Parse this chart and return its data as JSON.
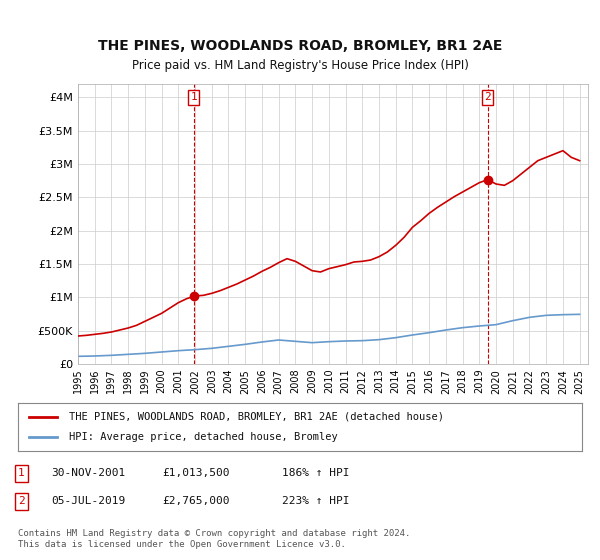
{
  "title": "THE PINES, WOODLANDS ROAD, BROMLEY, BR1 2AE",
  "subtitle": "Price paid vs. HM Land Registry's House Price Index (HPI)",
  "legend_line1": "THE PINES, WOODLANDS ROAD, BROMLEY, BR1 2AE (detached house)",
  "legend_line2": "HPI: Average price, detached house, Bromley",
  "annotation1_label": "1",
  "annotation1_date": "30-NOV-2001",
  "annotation1_price": "£1,013,500",
  "annotation1_hpi": "186% ↑ HPI",
  "annotation2_label": "2",
  "annotation2_date": "05-JUL-2019",
  "annotation2_price": "£2,765,000",
  "annotation2_hpi": "223% ↑ HPI",
  "footer": "Contains HM Land Registry data © Crown copyright and database right 2024.\nThis data is licensed under the Open Government Licence v3.0.",
  "background_color": "#ffffff",
  "grid_color": "#cccccc",
  "hpi_line_color": "#6699cc",
  "property_line_color": "#cc0000",
  "vline_color": "#cc0000",
  "ylim": [
    0,
    4200000
  ],
  "yticks": [
    0,
    500000,
    1000000,
    1500000,
    2000000,
    2500000,
    3000000,
    3500000,
    4000000
  ],
  "xlim_start": 1995.0,
  "xlim_end": 2025.5,
  "purchase1_x": 2001.92,
  "purchase1_y": 1013500,
  "purchase2_x": 2019.5,
  "purchase2_y": 2765000,
  "years": [
    1995,
    1996,
    1997,
    1998,
    1999,
    2000,
    2001,
    2002,
    2003,
    2004,
    2005,
    2006,
    2007,
    2008,
    2009,
    2010,
    2011,
    2012,
    2013,
    2014,
    2015,
    2016,
    2017,
    2018,
    2019,
    2020,
    2021,
    2022,
    2023,
    2024,
    2025
  ],
  "hpi_values": [
    115000,
    120000,
    130000,
    145000,
    160000,
    180000,
    200000,
    215000,
    235000,
    265000,
    295000,
    330000,
    360000,
    340000,
    320000,
    335000,
    345000,
    350000,
    365000,
    395000,
    435000,
    470000,
    510000,
    545000,
    570000,
    590000,
    650000,
    700000,
    730000,
    740000,
    745000
  ],
  "property_x": [
    1995.0,
    1995.5,
    1996.0,
    1996.5,
    1997.0,
    1997.5,
    1998.0,
    1998.5,
    1999.0,
    1999.5,
    2000.0,
    2000.5,
    2001.0,
    2001.5,
    2001.92,
    2002.0,
    2002.5,
    2003.0,
    2003.5,
    2004.0,
    2004.5,
    2005.0,
    2005.5,
    2006.0,
    2006.5,
    2007.0,
    2007.5,
    2008.0,
    2008.5,
    2009.0,
    2009.5,
    2010.0,
    2010.5,
    2011.0,
    2011.5,
    2012.0,
    2012.5,
    2013.0,
    2013.5,
    2014.0,
    2014.5,
    2015.0,
    2015.5,
    2016.0,
    2016.5,
    2017.0,
    2017.5,
    2018.0,
    2018.5,
    2019.0,
    2019.5,
    2020.0,
    2020.5,
    2021.0,
    2021.5,
    2022.0,
    2022.5,
    2023.0,
    2023.5,
    2024.0,
    2024.5,
    2025.0
  ],
  "property_values": [
    420000,
    430000,
    445000,
    460000,
    480000,
    510000,
    540000,
    580000,
    640000,
    700000,
    760000,
    840000,
    920000,
    980000,
    1013500,
    1020000,
    1030000,
    1060000,
    1100000,
    1150000,
    1200000,
    1260000,
    1320000,
    1390000,
    1450000,
    1520000,
    1580000,
    1540000,
    1470000,
    1400000,
    1380000,
    1430000,
    1460000,
    1490000,
    1530000,
    1540000,
    1560000,
    1610000,
    1680000,
    1780000,
    1900000,
    2050000,
    2150000,
    2260000,
    2350000,
    2430000,
    2510000,
    2580000,
    2650000,
    2720000,
    2765000,
    2700000,
    2680000,
    2750000,
    2850000,
    2950000,
    3050000,
    3100000,
    3150000,
    3200000,
    3100000,
    3050000
  ]
}
